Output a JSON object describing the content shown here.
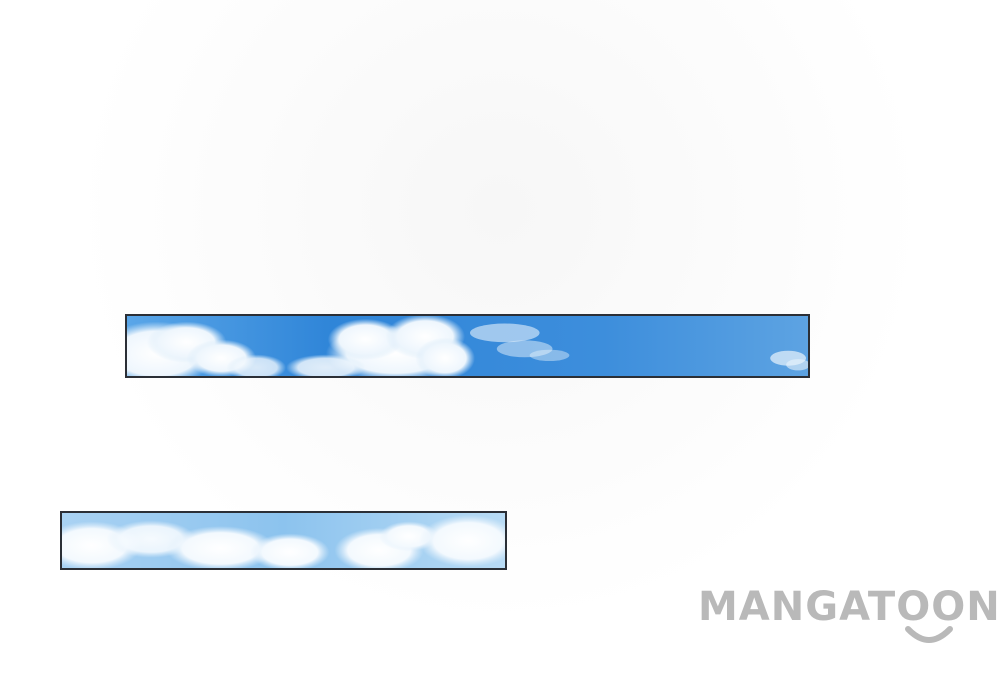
{
  "watermark": {
    "text": "MANGATOON",
    "color": "#b9b9b9"
  },
  "panels": [
    {
      "name": "sky-panel-top",
      "sky_color": "#3f8fdc"
    },
    {
      "name": "sky-panel-bottom",
      "sky_color": "#8cc3ee"
    }
  ]
}
